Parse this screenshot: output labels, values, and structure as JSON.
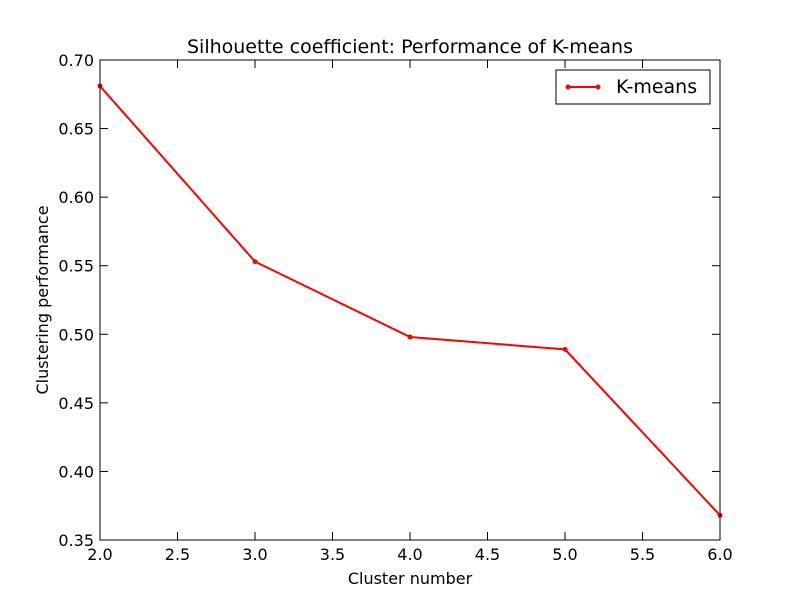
{
  "chart_data": {
    "type": "line",
    "title": "Silhouette coefficient: Performance of K-means",
    "xlabel": "Cluster number",
    "ylabel": "Clustering performance",
    "xlim": [
      2.0,
      6.0
    ],
    "ylim": [
      0.35,
      0.7
    ],
    "xticks": [
      "2.0",
      "2.5",
      "3.0",
      "3.5",
      "4.0",
      "4.5",
      "5.0",
      "5.5",
      "6.0"
    ],
    "yticks": [
      "0.35",
      "0.40",
      "0.45",
      "0.50",
      "0.55",
      "0.60",
      "0.65",
      "0.70"
    ],
    "grid": false,
    "legend": {
      "position": "top-right"
    },
    "series": [
      {
        "name": "K-means",
        "color": "#ff0000",
        "marker": "point",
        "x": [
          2,
          3,
          4,
          5,
          6
        ],
        "y": [
          0.681,
          0.553,
          0.498,
          0.489,
          0.368
        ]
      }
    ]
  }
}
